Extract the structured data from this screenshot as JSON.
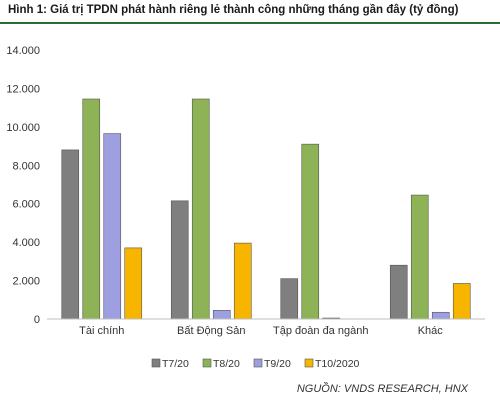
{
  "title": "Hình 1: Giá trị TPDN phát hành riêng lẻ thành công những tháng gần đây (tỷ đồng)",
  "source": "NGUỒN: VNDS RESEARCH, HNX",
  "chart_data": {
    "type": "bar",
    "categories": [
      "Tài chính",
      "Bất Động Sản",
      "Tập đoàn đa ngành",
      "Khác"
    ],
    "series": [
      {
        "name": "T7/20",
        "color": "#7f7f7f",
        "values": [
          8800,
          6150,
          2100,
          2800
        ]
      },
      {
        "name": "T8/20",
        "color": "#8db356",
        "values": [
          11450,
          11450,
          9100,
          6450
        ]
      },
      {
        "name": "T9/20",
        "color": "#9e9fe0",
        "values": [
          9650,
          450,
          50,
          350
        ]
      },
      {
        "name": "T10/2020",
        "color": "#f7b500",
        "values": [
          3700,
          3950,
          0,
          1850
        ]
      }
    ],
    "yticks": [
      "0",
      "2.000",
      "4.000",
      "6.000",
      "8.000",
      "10.000",
      "12.000",
      "14.000"
    ],
    "ylim": [
      0,
      14000
    ],
    "grid": false,
    "legend_position": "bottom"
  }
}
